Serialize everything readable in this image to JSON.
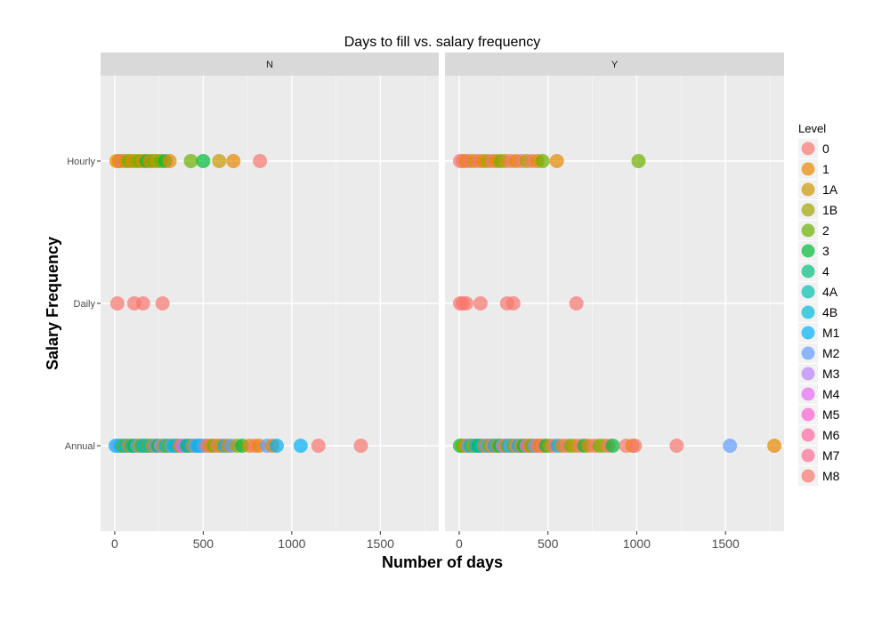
{
  "chart_data": {
    "type": "scatter",
    "title": "Days to fill vs. salary frequency",
    "xlabel": "Number of days",
    "ylabel": "Salary Frequency",
    "xlim": [
      -80,
      1830
    ],
    "x_ticks": [
      0,
      500,
      1000,
      1500
    ],
    "y_categories": [
      "Annual",
      "Daily",
      "Hourly"
    ],
    "grid": true,
    "legend": {
      "title": "Level",
      "placement": "right",
      "levels": [
        "0",
        "1",
        "1A",
        "1B",
        "2",
        "3",
        "4",
        "4A",
        "4B",
        "M1",
        "M2",
        "M3",
        "M4",
        "M5",
        "M6",
        "M7",
        "M8"
      ],
      "colors": [
        "#F8766D",
        "#E58700",
        "#C99800",
        "#A3A500",
        "#6BB100",
        "#00BA38",
        "#00BF7D",
        "#00C0AF",
        "#00BCD8",
        "#00B0F6",
        "#619CFF",
        "#B983FF",
        "#E76BF3",
        "#FD61D1",
        "#FF67A4",
        "#FF6C91",
        "#F8766D"
      ]
    },
    "panels": [
      {
        "strip": "N",
        "points": [
          {
            "x": 10,
            "y": "Hourly",
            "level": "1"
          },
          {
            "x": 25,
            "y": "Hourly",
            "level": "1"
          },
          {
            "x": 40,
            "y": "Hourly",
            "level": "0"
          },
          {
            "x": 60,
            "y": "Hourly",
            "level": "1A"
          },
          {
            "x": 80,
            "y": "Hourly",
            "level": "2"
          },
          {
            "x": 100,
            "y": "Hourly",
            "level": "1"
          },
          {
            "x": 120,
            "y": "Hourly",
            "level": "1B"
          },
          {
            "x": 140,
            "y": "Hourly",
            "level": "2"
          },
          {
            "x": 160,
            "y": "Hourly",
            "level": "1"
          },
          {
            "x": 180,
            "y": "Hourly",
            "level": "3"
          },
          {
            "x": 200,
            "y": "Hourly",
            "level": "1"
          },
          {
            "x": 220,
            "y": "Hourly",
            "level": "2"
          },
          {
            "x": 240,
            "y": "Hourly",
            "level": "1A"
          },
          {
            "x": 260,
            "y": "Hourly",
            "level": "2"
          },
          {
            "x": 285,
            "y": "Hourly",
            "level": "3"
          },
          {
            "x": 310,
            "y": "Hourly",
            "level": "1"
          },
          {
            "x": 430,
            "y": "Hourly",
            "level": "2"
          },
          {
            "x": 500,
            "y": "Hourly",
            "level": "3"
          },
          {
            "x": 590,
            "y": "Hourly",
            "level": "1A"
          },
          {
            "x": 670,
            "y": "Hourly",
            "level": "1"
          },
          {
            "x": 820,
            "y": "Hourly",
            "level": "0"
          },
          {
            "x": 15,
            "y": "Daily",
            "level": "0"
          },
          {
            "x": 110,
            "y": "Daily",
            "level": "0"
          },
          {
            "x": 160,
            "y": "Daily",
            "level": "0"
          },
          {
            "x": 270,
            "y": "Daily",
            "level": "0"
          },
          {
            "x": 5,
            "y": "Annual",
            "level": "M1"
          },
          {
            "x": 20,
            "y": "Annual",
            "level": "M2"
          },
          {
            "x": 35,
            "y": "Annual",
            "level": "4B"
          },
          {
            "x": 50,
            "y": "Annual",
            "level": "2"
          },
          {
            "x": 65,
            "y": "Annual",
            "level": "M1"
          },
          {
            "x": 80,
            "y": "Annual",
            "level": "1"
          },
          {
            "x": 95,
            "y": "Annual",
            "level": "4A"
          },
          {
            "x": 110,
            "y": "Annual",
            "level": "3"
          },
          {
            "x": 125,
            "y": "Annual",
            "level": "M2"
          },
          {
            "x": 140,
            "y": "Annual",
            "level": "1A"
          },
          {
            "x": 155,
            "y": "Annual",
            "level": "4"
          },
          {
            "x": 170,
            "y": "Annual",
            "level": "M1"
          },
          {
            "x": 185,
            "y": "Annual",
            "level": "2"
          },
          {
            "x": 200,
            "y": "Annual",
            "level": "4B"
          },
          {
            "x": 215,
            "y": "Annual",
            "level": "1"
          },
          {
            "x": 230,
            "y": "Annual",
            "level": "M2"
          },
          {
            "x": 245,
            "y": "Annual",
            "level": "3"
          },
          {
            "x": 260,
            "y": "Annual",
            "level": "M3"
          },
          {
            "x": 275,
            "y": "Annual",
            "level": "1B"
          },
          {
            "x": 290,
            "y": "Annual",
            "level": "M1"
          },
          {
            "x": 305,
            "y": "Annual",
            "level": "2"
          },
          {
            "x": 320,
            "y": "Annual",
            "level": "M2"
          },
          {
            "x": 335,
            "y": "Annual",
            "level": "4A"
          },
          {
            "x": 350,
            "y": "Annual",
            "level": "M1"
          },
          {
            "x": 365,
            "y": "Annual",
            "level": "1"
          },
          {
            "x": 380,
            "y": "Annual",
            "level": "M5"
          },
          {
            "x": 395,
            "y": "Annual",
            "level": "M2"
          },
          {
            "x": 410,
            "y": "Annual",
            "level": "3"
          },
          {
            "x": 425,
            "y": "Annual",
            "level": "M1"
          },
          {
            "x": 440,
            "y": "Annual",
            "level": "1A"
          },
          {
            "x": 455,
            "y": "Annual",
            "level": "M2"
          },
          {
            "x": 470,
            "y": "Annual",
            "level": "M1"
          },
          {
            "x": 485,
            "y": "Annual",
            "level": "4B"
          },
          {
            "x": 500,
            "y": "Annual",
            "level": "M2"
          },
          {
            "x": 520,
            "y": "Annual",
            "level": "M8"
          },
          {
            "x": 540,
            "y": "Annual",
            "level": "1"
          },
          {
            "x": 560,
            "y": "Annual",
            "level": "2"
          },
          {
            "x": 580,
            "y": "Annual",
            "level": "0"
          },
          {
            "x": 600,
            "y": "Annual",
            "level": "1A"
          },
          {
            "x": 620,
            "y": "Annual",
            "level": "M1"
          },
          {
            "x": 640,
            "y": "Annual",
            "level": "1"
          },
          {
            "x": 660,
            "y": "Annual",
            "level": "M2"
          },
          {
            "x": 690,
            "y": "Annual",
            "level": "1B"
          },
          {
            "x": 720,
            "y": "Annual",
            "level": "3"
          },
          {
            "x": 760,
            "y": "Annual",
            "level": "1"
          },
          {
            "x": 790,
            "y": "Annual",
            "level": "0"
          },
          {
            "x": 815,
            "y": "Annual",
            "level": "1"
          },
          {
            "x": 860,
            "y": "Annual",
            "level": "M2"
          },
          {
            "x": 890,
            "y": "Annual",
            "level": "1"
          },
          {
            "x": 915,
            "y": "Annual",
            "level": "M1"
          },
          {
            "x": 1050,
            "y": "Annual",
            "level": "M1"
          },
          {
            "x": 1150,
            "y": "Annual",
            "level": "0"
          },
          {
            "x": 1390,
            "y": "Annual",
            "level": "0"
          }
        ]
      },
      {
        "strip": "Y",
        "points": [
          {
            "x": 5,
            "y": "Hourly",
            "level": "0"
          },
          {
            "x": 20,
            "y": "Hourly",
            "level": "0"
          },
          {
            "x": 40,
            "y": "Hourly",
            "level": "1"
          },
          {
            "x": 60,
            "y": "Hourly",
            "level": "0"
          },
          {
            "x": 85,
            "y": "Hourly",
            "level": "1A"
          },
          {
            "x": 110,
            "y": "Hourly",
            "level": "0"
          },
          {
            "x": 135,
            "y": "Hourly",
            "level": "1"
          },
          {
            "x": 160,
            "y": "Hourly",
            "level": "1B"
          },
          {
            "x": 185,
            "y": "Hourly",
            "level": "0"
          },
          {
            "x": 210,
            "y": "Hourly",
            "level": "1"
          },
          {
            "x": 235,
            "y": "Hourly",
            "level": "2"
          },
          {
            "x": 260,
            "y": "Hourly",
            "level": "1A"
          },
          {
            "x": 290,
            "y": "Hourly",
            "level": "0"
          },
          {
            "x": 320,
            "y": "Hourly",
            "level": "1"
          },
          {
            "x": 350,
            "y": "Hourly",
            "level": "0"
          },
          {
            "x": 380,
            "y": "Hourly",
            "level": "1B"
          },
          {
            "x": 410,
            "y": "Hourly",
            "level": "0"
          },
          {
            "x": 440,
            "y": "Hourly",
            "level": "1"
          },
          {
            "x": 470,
            "y": "Hourly",
            "level": "2"
          },
          {
            "x": 550,
            "y": "Hourly",
            "level": "1"
          },
          {
            "x": 1010,
            "y": "Hourly",
            "level": "2"
          },
          {
            "x": 5,
            "y": "Daily",
            "level": "0"
          },
          {
            "x": 20,
            "y": "Daily",
            "level": "0"
          },
          {
            "x": 40,
            "y": "Daily",
            "level": "0"
          },
          {
            "x": 120,
            "y": "Daily",
            "level": "0"
          },
          {
            "x": 270,
            "y": "Daily",
            "level": "0"
          },
          {
            "x": 305,
            "y": "Daily",
            "level": "0"
          },
          {
            "x": 660,
            "y": "Daily",
            "level": "0"
          },
          {
            "x": 5,
            "y": "Annual",
            "level": "3"
          },
          {
            "x": 20,
            "y": "Annual",
            "level": "2"
          },
          {
            "x": 35,
            "y": "Annual",
            "level": "1"
          },
          {
            "x": 50,
            "y": "Annual",
            "level": "M2"
          },
          {
            "x": 65,
            "y": "Annual",
            "level": "4"
          },
          {
            "x": 80,
            "y": "Annual",
            "level": "1A"
          },
          {
            "x": 95,
            "y": "Annual",
            "level": "M1"
          },
          {
            "x": 110,
            "y": "Annual",
            "level": "3"
          },
          {
            "x": 125,
            "y": "Annual",
            "level": "4B"
          },
          {
            "x": 140,
            "y": "Annual",
            "level": "1"
          },
          {
            "x": 155,
            "y": "Annual",
            "level": "M2"
          },
          {
            "x": 170,
            "y": "Annual",
            "level": "2"
          },
          {
            "x": 185,
            "y": "Annual",
            "level": "0"
          },
          {
            "x": 200,
            "y": "Annual",
            "level": "M1"
          },
          {
            "x": 215,
            "y": "Annual",
            "level": "1B"
          },
          {
            "x": 230,
            "y": "Annual",
            "level": "3"
          },
          {
            "x": 245,
            "y": "Annual",
            "level": "M3"
          },
          {
            "x": 260,
            "y": "Annual",
            "level": "1"
          },
          {
            "x": 275,
            "y": "Annual",
            "level": "4A"
          },
          {
            "x": 290,
            "y": "Annual",
            "level": "M2"
          },
          {
            "x": 305,
            "y": "Annual",
            "level": "2"
          },
          {
            "x": 320,
            "y": "Annual",
            "level": "0"
          },
          {
            "x": 335,
            "y": "Annual",
            "level": "M1"
          },
          {
            "x": 350,
            "y": "Annual",
            "level": "1A"
          },
          {
            "x": 365,
            "y": "Annual",
            "level": "3"
          },
          {
            "x": 380,
            "y": "Annual",
            "level": "M4"
          },
          {
            "x": 395,
            "y": "Annual",
            "level": "1"
          },
          {
            "x": 410,
            "y": "Annual",
            "level": "2"
          },
          {
            "x": 425,
            "y": "Annual",
            "level": "M2"
          },
          {
            "x": 440,
            "y": "Annual",
            "level": "0"
          },
          {
            "x": 455,
            "y": "Annual",
            "level": "1"
          },
          {
            "x": 470,
            "y": "Annual",
            "level": "M8"
          },
          {
            "x": 490,
            "y": "Annual",
            "level": "3"
          },
          {
            "x": 510,
            "y": "Annual",
            "level": "1B"
          },
          {
            "x": 530,
            "y": "Annual",
            "level": "0"
          },
          {
            "x": 555,
            "y": "Annual",
            "level": "M1"
          },
          {
            "x": 580,
            "y": "Annual",
            "level": "1"
          },
          {
            "x": 605,
            "y": "Annual",
            "level": "0"
          },
          {
            "x": 630,
            "y": "Annual",
            "level": "2"
          },
          {
            "x": 655,
            "y": "Annual",
            "level": "1A"
          },
          {
            "x": 680,
            "y": "Annual",
            "level": "0"
          },
          {
            "x": 705,
            "y": "Annual",
            "level": "3"
          },
          {
            "x": 730,
            "y": "Annual",
            "level": "1"
          },
          {
            "x": 760,
            "y": "Annual",
            "level": "0"
          },
          {
            "x": 790,
            "y": "Annual",
            "level": "2"
          },
          {
            "x": 815,
            "y": "Annual",
            "level": "1B"
          },
          {
            "x": 840,
            "y": "Annual",
            "level": "0"
          },
          {
            "x": 865,
            "y": "Annual",
            "level": "3"
          },
          {
            "x": 940,
            "y": "Annual",
            "level": "0"
          },
          {
            "x": 975,
            "y": "Annual",
            "level": "1"
          },
          {
            "x": 990,
            "y": "Annual",
            "level": "0"
          },
          {
            "x": 1225,
            "y": "Annual",
            "level": "0"
          },
          {
            "x": 1525,
            "y": "Annual",
            "level": "M2"
          },
          {
            "x": 1775,
            "y": "Annual",
            "level": "1"
          }
        ]
      }
    ]
  }
}
